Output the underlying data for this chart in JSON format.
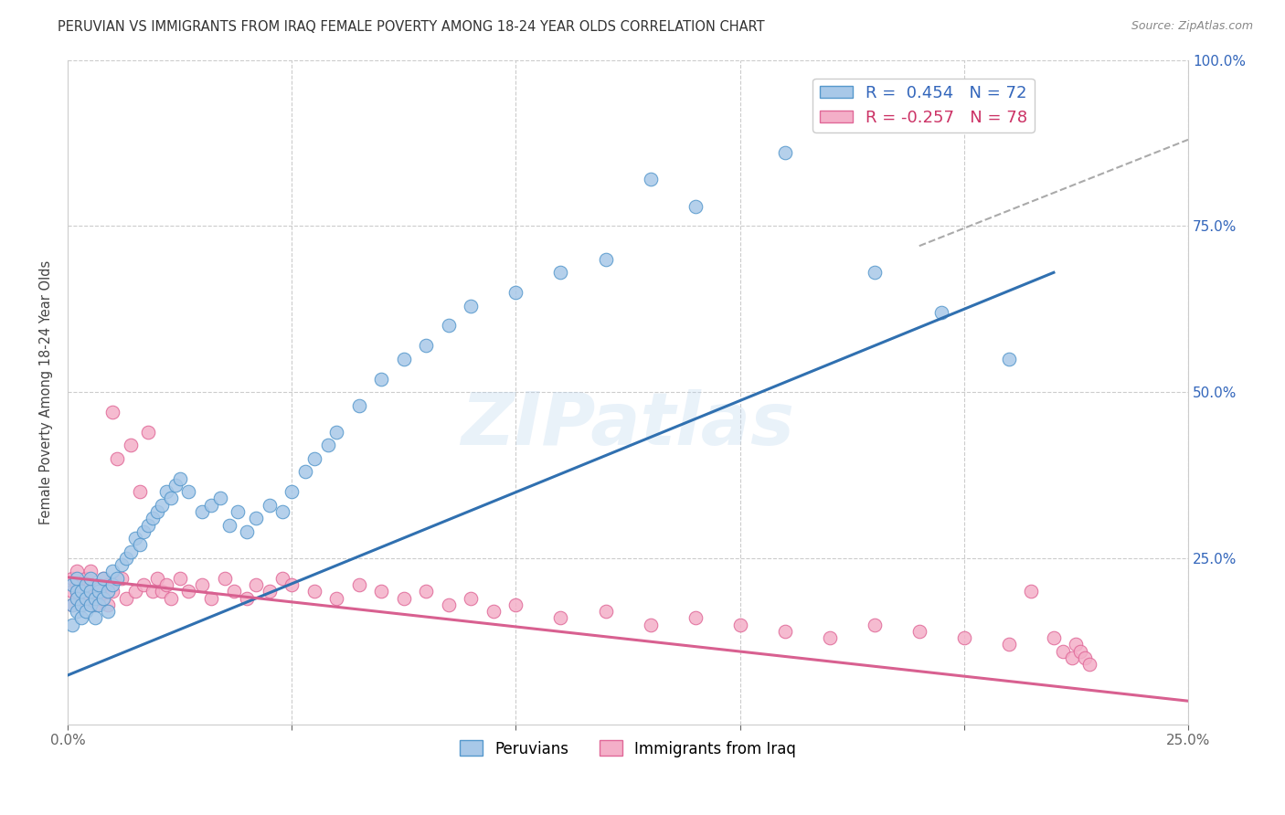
{
  "title": "PERUVIAN VS IMMIGRANTS FROM IRAQ FEMALE POVERTY AMONG 18-24 YEAR OLDS CORRELATION CHART",
  "source": "Source: ZipAtlas.com",
  "ylabel": "Female Poverty Among 18-24 Year Olds",
  "xlim": [
    0.0,
    0.25
  ],
  "ylim": [
    0.0,
    1.0
  ],
  "legend_blue_label": "R =  0.454   N = 72",
  "legend_pink_label": "R = -0.257   N = 78",
  "blue_color": "#a8c8e8",
  "pink_color": "#f4afc8",
  "blue_edge_color": "#5598cc",
  "pink_edge_color": "#e06898",
  "blue_line_color": "#3070b0",
  "pink_line_color": "#d86090",
  "blue_line_x0": -0.005,
  "blue_line_x1": 0.22,
  "blue_line_y0": 0.06,
  "blue_line_y1": 0.68,
  "pink_line_x0": -0.005,
  "pink_line_x1": 0.25,
  "pink_line_y0": 0.225,
  "pink_line_y1": 0.035,
  "dash_line_x0": 0.19,
  "dash_line_x1": 0.25,
  "dash_line_y0": 0.72,
  "dash_line_y1": 0.88,
  "watermark": "ZIPatlas",
  "background_color": "#ffffff",
  "grid_color": "#cccccc",
  "blue_scatter_x": [
    0.001,
    0.001,
    0.001,
    0.002,
    0.002,
    0.002,
    0.002,
    0.003,
    0.003,
    0.003,
    0.004,
    0.004,
    0.004,
    0.005,
    0.005,
    0.005,
    0.006,
    0.006,
    0.007,
    0.007,
    0.007,
    0.008,
    0.008,
    0.009,
    0.009,
    0.01,
    0.01,
    0.011,
    0.012,
    0.013,
    0.014,
    0.015,
    0.016,
    0.017,
    0.018,
    0.019,
    0.02,
    0.021,
    0.022,
    0.023,
    0.024,
    0.025,
    0.027,
    0.03,
    0.032,
    0.034,
    0.036,
    0.038,
    0.04,
    0.042,
    0.045,
    0.048,
    0.05,
    0.053,
    0.055,
    0.058,
    0.06,
    0.065,
    0.07,
    0.075,
    0.08,
    0.085,
    0.09,
    0.1,
    0.11,
    0.12,
    0.13,
    0.14,
    0.16,
    0.18,
    0.195,
    0.21
  ],
  "blue_scatter_y": [
    0.21,
    0.18,
    0.15,
    0.2,
    0.17,
    0.19,
    0.22,
    0.18,
    0.2,
    0.16,
    0.19,
    0.21,
    0.17,
    0.2,
    0.18,
    0.22,
    0.19,
    0.16,
    0.2,
    0.18,
    0.21,
    0.19,
    0.22,
    0.2,
    0.17,
    0.21,
    0.23,
    0.22,
    0.24,
    0.25,
    0.26,
    0.28,
    0.27,
    0.29,
    0.3,
    0.31,
    0.32,
    0.33,
    0.35,
    0.34,
    0.36,
    0.37,
    0.35,
    0.32,
    0.33,
    0.34,
    0.3,
    0.32,
    0.29,
    0.31,
    0.33,
    0.32,
    0.35,
    0.38,
    0.4,
    0.42,
    0.44,
    0.48,
    0.52,
    0.55,
    0.57,
    0.6,
    0.63,
    0.65,
    0.68,
    0.7,
    0.82,
    0.78,
    0.86,
    0.68,
    0.62,
    0.55
  ],
  "pink_scatter_x": [
    0.001,
    0.001,
    0.001,
    0.002,
    0.002,
    0.002,
    0.003,
    0.003,
    0.003,
    0.004,
    0.004,
    0.004,
    0.005,
    0.005,
    0.005,
    0.006,
    0.006,
    0.007,
    0.007,
    0.008,
    0.008,
    0.009,
    0.009,
    0.01,
    0.01,
    0.011,
    0.012,
    0.013,
    0.014,
    0.015,
    0.016,
    0.017,
    0.018,
    0.019,
    0.02,
    0.021,
    0.022,
    0.023,
    0.025,
    0.027,
    0.03,
    0.032,
    0.035,
    0.037,
    0.04,
    0.042,
    0.045,
    0.048,
    0.05,
    0.055,
    0.06,
    0.065,
    0.07,
    0.075,
    0.08,
    0.085,
    0.09,
    0.095,
    0.1,
    0.11,
    0.12,
    0.13,
    0.14,
    0.15,
    0.16,
    0.17,
    0.18,
    0.19,
    0.2,
    0.21,
    0.215,
    0.22,
    0.222,
    0.224,
    0.225,
    0.226,
    0.227,
    0.228
  ],
  "pink_scatter_y": [
    0.22,
    0.2,
    0.18,
    0.21,
    0.19,
    0.23,
    0.2,
    0.18,
    0.21,
    0.19,
    0.22,
    0.2,
    0.21,
    0.19,
    0.23,
    0.2,
    0.18,
    0.21,
    0.19,
    0.22,
    0.2,
    0.21,
    0.18,
    0.47,
    0.2,
    0.4,
    0.22,
    0.19,
    0.42,
    0.2,
    0.35,
    0.21,
    0.44,
    0.2,
    0.22,
    0.2,
    0.21,
    0.19,
    0.22,
    0.2,
    0.21,
    0.19,
    0.22,
    0.2,
    0.19,
    0.21,
    0.2,
    0.22,
    0.21,
    0.2,
    0.19,
    0.21,
    0.2,
    0.19,
    0.2,
    0.18,
    0.19,
    0.17,
    0.18,
    0.16,
    0.17,
    0.15,
    0.16,
    0.15,
    0.14,
    0.13,
    0.15,
    0.14,
    0.13,
    0.12,
    0.2,
    0.13,
    0.11,
    0.1,
    0.12,
    0.11,
    0.1,
    0.09
  ]
}
